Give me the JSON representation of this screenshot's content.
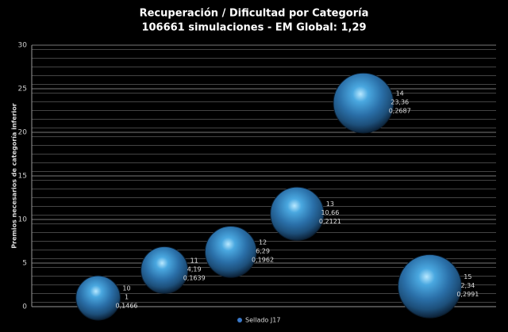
{
  "chart_data": {
    "type": "bubble",
    "title": "Recuperación / Dificultad por Categoría",
    "subtitle": "106661 simulaciones - EM Global: 1,29",
    "y_label": "Premios necesarios de categoría inferior",
    "xlim": [
      9,
      16
    ],
    "ylim": [
      0,
      30
    ],
    "yticks": [
      0,
      5,
      10,
      15,
      20,
      25,
      30
    ],
    "grid": true,
    "legend": "bottom",
    "series": [
      {
        "name": "Sellado J17",
        "color": "#3a78c8",
        "x": [
          10,
          11,
          12,
          13,
          14,
          15
        ],
        "values": [
          1,
          4.19,
          6.29,
          10.66,
          23.36,
          2.34
        ],
        "value_labels": [
          "1",
          "4,19",
          "6,29",
          "10,66",
          "23,36",
          "2,34"
        ],
        "sizes": [
          0.1466,
          0.1639,
          0.1962,
          0.2121,
          0.2687,
          0.2991
        ],
        "size_labels": [
          "0,1466",
          "0,1639",
          "0,1962",
          "0,2121",
          "0,2687",
          "0,2991"
        ]
      }
    ]
  }
}
